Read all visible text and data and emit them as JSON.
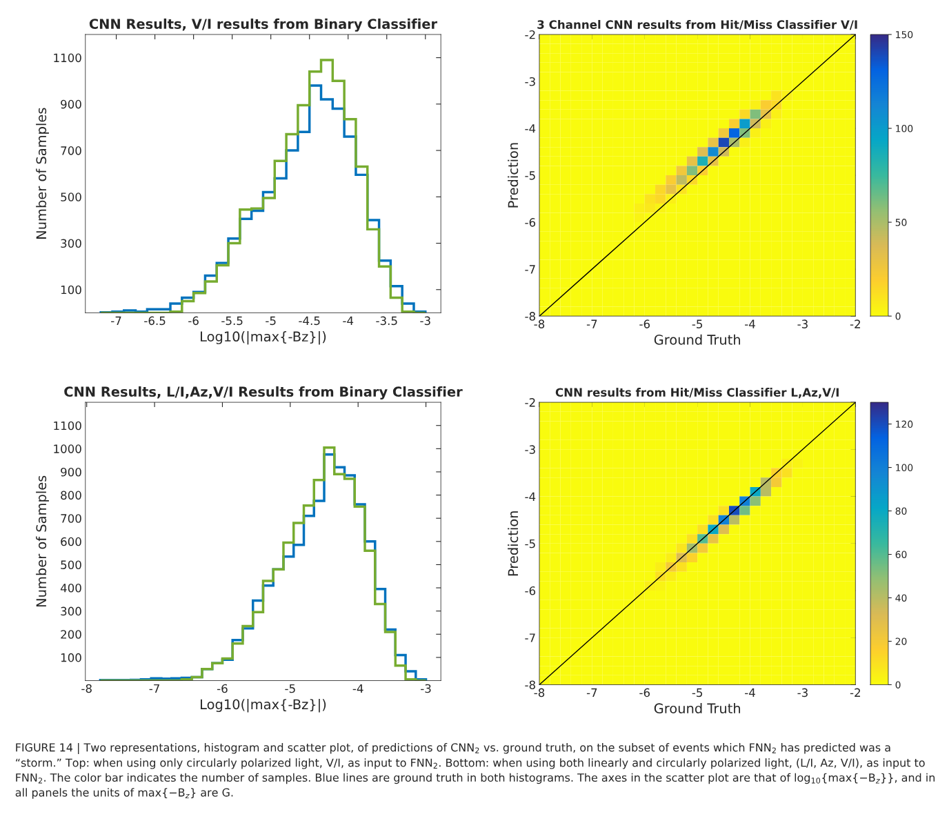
{
  "chart_data": [
    {
      "type": "histogram",
      "title": "CNN Results, V/I results from Binary Classifier",
      "xlabel": "Log10(|max{-Bz}|)",
      "ylabel": "Number of Samples",
      "xlim": [
        -7.4,
        -2.8
      ],
      "ylim": [
        0,
        1200
      ],
      "xticks": [
        -7,
        -6.5,
        -6,
        -5.5,
        -5,
        -4.5,
        -4,
        -3.5,
        -3
      ],
      "yticks": [
        100,
        300,
        500,
        700,
        900,
        1100
      ],
      "bins": [
        -7.2,
        -7.05,
        -6.9,
        -6.75,
        -6.6,
        -6.45,
        -6.3,
        -6.15,
        -6.0,
        -5.85,
        -5.7,
        -5.55,
        -5.4,
        -5.25,
        -5.1,
        -4.95,
        -4.8,
        -4.65,
        -4.5,
        -4.35,
        -4.2,
        -4.05,
        -3.9,
        -3.75,
        -3.6,
        -3.45,
        -3.3,
        -3.15,
        -3.0
      ],
      "series": [
        {
          "color": "#0072bd",
          "values": [
            2,
            5,
            10,
            5,
            15,
            15,
            40,
            65,
            90,
            160,
            215,
            320,
            405,
            440,
            520,
            580,
            700,
            780,
            980,
            920,
            880,
            760,
            595,
            400,
            225,
            115,
            40,
            5
          ]
        },
        {
          "color": "#77ac30",
          "values": [
            0,
            0,
            0,
            0,
            0,
            0,
            5,
            50,
            85,
            135,
            205,
            300,
            445,
            450,
            495,
            655,
            770,
            895,
            1040,
            1090,
            1000,
            835,
            630,
            360,
            200,
            65,
            5,
            0
          ]
        }
      ]
    },
    {
      "type": "heatmap",
      "title": "3 Channel CNN results from Hit/Miss Classifier V/I",
      "xlabel": "Ground Truth",
      "ylabel": "Prediction",
      "xlim": [
        -8,
        -2
      ],
      "ylim": [
        -8,
        -2
      ],
      "xticks": [
        -8,
        -7,
        -6,
        -5,
        -4,
        -3,
        -2
      ],
      "yticks": [
        -8,
        -7,
        -6,
        -5,
        -4,
        -3,
        -2
      ],
      "clim": [
        0,
        150
      ],
      "cticks": [
        0,
        50,
        100,
        150
      ],
      "series": [
        {
          "type": "line",
          "color": "#000000",
          "x": [
            -8,
            -7,
            -6,
            -5,
            -4,
            -3,
            -2
          ],
          "values": [
            -8,
            -7,
            -6,
            -5,
            -4,
            -3,
            -2
          ]
        }
      ],
      "cells": [
        [
          0,
          0,
          0,
          0,
          0,
          0,
          0,
          0,
          0,
          0,
          0,
          0,
          0,
          0,
          0,
          0,
          0,
          0,
          0,
          0,
          0,
          0,
          0,
          0,
          0,
          0,
          0,
          0,
          0,
          0
        ],
        [
          0,
          0,
          0,
          0,
          0,
          0,
          0,
          0,
          0,
          0,
          0,
          0,
          0,
          0,
          0,
          0,
          0,
          0,
          0,
          0,
          0,
          0,
          0,
          0,
          0,
          0,
          0,
          0,
          0,
          0
        ],
        [
          0,
          0,
          0,
          0,
          0,
          0,
          0,
          0,
          0,
          0,
          0,
          0,
          0,
          0,
          0,
          0,
          0,
          0,
          0,
          0,
          0,
          0,
          0,
          0,
          0,
          0,
          0,
          0,
          0,
          0
        ],
        [
          0,
          0,
          0,
          0,
          0,
          0,
          0,
          0,
          0,
          0,
          0,
          0,
          0,
          0,
          0,
          0,
          0,
          0,
          0,
          0,
          0,
          0,
          0,
          0,
          0,
          0,
          0,
          0,
          0,
          0
        ],
        [
          0,
          0,
          0,
          0,
          0,
          0,
          0,
          0,
          0,
          0,
          0,
          0,
          0,
          0,
          0,
          0,
          0,
          0,
          0,
          0,
          0,
          0,
          0,
          0,
          0,
          0,
          0,
          0,
          0,
          0
        ],
        [
          0,
          0,
          0,
          0,
          0,
          0,
          0,
          0,
          0,
          0,
          0,
          0,
          0,
          0,
          0,
          0,
          0,
          0,
          0,
          0,
          0,
          0,
          0,
          0,
          0,
          0,
          0,
          0,
          0,
          0
        ],
        [
          0,
          0,
          0,
          0,
          0,
          0,
          0,
          0,
          0,
          0,
          0,
          0,
          0,
          0,
          0,
          0,
          0,
          0,
          0,
          0,
          0,
          0,
          10,
          5,
          0,
          0,
          0,
          0,
          0,
          0
        ],
        [
          0,
          0,
          0,
          0,
          0,
          0,
          0,
          0,
          0,
          0,
          0,
          0,
          0,
          0,
          0,
          0,
          0,
          0,
          0,
          0,
          5,
          20,
          15,
          0,
          0,
          0,
          0,
          0,
          0,
          0
        ],
        [
          0,
          0,
          0,
          0,
          0,
          0,
          0,
          0,
          0,
          0,
          0,
          0,
          0,
          0,
          0,
          0,
          0,
          0,
          0,
          15,
          60,
          30,
          5,
          0,
          0,
          0,
          0,
          0,
          0,
          0
        ],
        [
          0,
          0,
          0,
          0,
          0,
          0,
          0,
          0,
          0,
          0,
          0,
          0,
          0,
          0,
          0,
          0,
          0,
          0,
          20,
          100,
          40,
          5,
          0,
          0,
          0,
          0,
          0,
          0,
          0,
          0
        ],
        [
          0,
          0,
          0,
          0,
          0,
          0,
          0,
          0,
          0,
          0,
          0,
          0,
          0,
          0,
          0,
          0,
          0,
          25,
          130,
          60,
          5,
          0,
          0,
          0,
          0,
          0,
          0,
          0,
          0,
          0
        ],
        [
          0,
          0,
          0,
          0,
          0,
          0,
          0,
          0,
          0,
          0,
          0,
          0,
          0,
          0,
          0,
          0,
          30,
          140,
          50,
          5,
          0,
          0,
          0,
          0,
          0,
          0,
          0,
          0,
          0,
          0
        ],
        [
          0,
          0,
          0,
          0,
          0,
          0,
          0,
          0,
          0,
          0,
          0,
          0,
          0,
          0,
          0,
          35,
          110,
          40,
          0,
          0,
          0,
          0,
          0,
          0,
          0,
          0,
          0,
          0,
          0,
          0
        ],
        [
          0,
          0,
          0,
          0,
          0,
          0,
          0,
          0,
          0,
          0,
          0,
          0,
          0,
          0,
          30,
          85,
          30,
          0,
          0,
          0,
          0,
          0,
          0,
          0,
          0,
          0,
          0,
          0,
          0,
          0
        ],
        [
          0,
          0,
          0,
          0,
          0,
          0,
          0,
          0,
          0,
          0,
          0,
          0,
          0,
          25,
          60,
          20,
          0,
          0,
          0,
          0,
          0,
          0,
          0,
          0,
          0,
          0,
          0,
          0,
          0,
          0
        ],
        [
          0,
          0,
          0,
          0,
          0,
          0,
          0,
          0,
          0,
          0,
          0,
          0,
          20,
          45,
          15,
          0,
          0,
          0,
          0,
          0,
          0,
          0,
          0,
          0,
          0,
          0,
          0,
          0,
          0,
          0
        ],
        [
          0,
          0,
          0,
          0,
          0,
          0,
          0,
          0,
          0,
          0,
          0,
          15,
          30,
          10,
          0,
          0,
          0,
          0,
          0,
          0,
          0,
          0,
          0,
          0,
          0,
          0,
          0,
          0,
          0,
          0
        ],
        [
          0,
          0,
          0,
          0,
          0,
          0,
          0,
          0,
          0,
          0,
          10,
          15,
          5,
          0,
          0,
          0,
          0,
          0,
          0,
          0,
          0,
          0,
          0,
          0,
          0,
          0,
          0,
          0,
          0,
          0
        ],
        [
          0,
          0,
          0,
          0,
          0,
          0,
          0,
          0,
          0,
          5,
          8,
          3,
          0,
          0,
          0,
          0,
          0,
          0,
          0,
          0,
          0,
          0,
          0,
          0,
          0,
          0,
          0,
          0,
          0,
          0
        ],
        [
          0,
          0,
          0,
          0,
          0,
          0,
          0,
          0,
          0,
          3,
          0,
          0,
          0,
          0,
          0,
          0,
          0,
          0,
          0,
          0,
          0,
          0,
          0,
          0,
          0,
          0,
          0,
          0,
          0,
          0
        ],
        [
          0,
          0,
          0,
          0,
          0,
          0,
          0,
          0,
          0,
          0,
          0,
          0,
          0,
          0,
          0,
          0,
          0,
          0,
          0,
          0,
          0,
          0,
          0,
          0,
          0,
          0,
          0,
          0,
          0,
          0
        ],
        [
          0,
          0,
          0,
          0,
          0,
          0,
          0,
          0,
          0,
          0,
          0,
          0,
          0,
          0,
          0,
          0,
          0,
          0,
          0,
          0,
          0,
          0,
          0,
          0,
          0,
          0,
          0,
          0,
          0,
          0
        ],
        [
          0,
          0,
          0,
          0,
          0,
          0,
          0,
          0,
          0,
          0,
          0,
          0,
          0,
          0,
          0,
          0,
          0,
          0,
          0,
          0,
          0,
          0,
          0,
          0,
          0,
          0,
          0,
          0,
          0,
          0
        ],
        [
          0,
          0,
          0,
          0,
          0,
          0,
          0,
          0,
          0,
          0,
          0,
          0,
          0,
          0,
          0,
          0,
          0,
          0,
          0,
          0,
          0,
          0,
          0,
          0,
          0,
          0,
          0,
          0,
          0,
          0
        ],
        [
          0,
          0,
          0,
          0,
          0,
          0,
          0,
          0,
          0,
          0,
          0,
          0,
          0,
          0,
          0,
          0,
          0,
          0,
          0,
          0,
          0,
          0,
          0,
          0,
          0,
          0,
          0,
          0,
          0,
          0
        ],
        [
          0,
          0,
          0,
          0,
          0,
          0,
          0,
          0,
          0,
          0,
          0,
          0,
          0,
          0,
          0,
          0,
          0,
          0,
          0,
          0,
          0,
          0,
          0,
          0,
          0,
          0,
          0,
          0,
          0,
          0
        ],
        [
          0,
          0,
          0,
          0,
          0,
          0,
          0,
          0,
          0,
          0,
          0,
          0,
          0,
          0,
          0,
          0,
          0,
          0,
          0,
          0,
          0,
          0,
          0,
          0,
          0,
          0,
          0,
          0,
          0,
          0
        ],
        [
          0,
          0,
          0,
          0,
          0,
          0,
          0,
          0,
          0,
          0,
          0,
          0,
          0,
          0,
          0,
          0,
          0,
          0,
          0,
          0,
          0,
          0,
          0,
          0,
          0,
          0,
          0,
          0,
          0,
          0
        ],
        [
          0,
          0,
          0,
          0,
          0,
          0,
          0,
          0,
          0,
          0,
          0,
          0,
          0,
          0,
          0,
          0,
          0,
          0,
          0,
          0,
          0,
          0,
          0,
          0,
          0,
          0,
          0,
          0,
          0,
          0
        ],
        [
          0,
          0,
          0,
          0,
          0,
          0,
          0,
          0,
          0,
          0,
          0,
          0,
          0,
          0,
          0,
          0,
          0,
          0,
          0,
          0,
          0,
          0,
          0,
          0,
          0,
          0,
          0,
          0,
          0,
          0
        ]
      ]
    },
    {
      "type": "histogram",
      "title": "CNN Results, L/I,Az,V/I Results from Binary Classifier",
      "xlabel": "Log10(|max{-Bz}|)",
      "ylabel": "Number of Samples",
      "xlim": [
        -8.02,
        -2.78
      ],
      "ylim": [
        0,
        1200
      ],
      "xticks": [
        -8,
        -7,
        -6,
        -5,
        -4,
        -3
      ],
      "yticks": [
        100,
        200,
        300,
        400,
        500,
        600,
        700,
        800,
        900,
        1000,
        1100
      ],
      "bins": [
        -7.8,
        -7.65,
        -7.5,
        -7.35,
        -7.2,
        -7.05,
        -6.9,
        -6.75,
        -6.6,
        -6.45,
        -6.3,
        -6.15,
        -6.0,
        -5.85,
        -5.7,
        -5.55,
        -5.4,
        -5.25,
        -5.1,
        -4.95,
        -4.8,
        -4.65,
        -4.5,
        -4.35,
        -4.2,
        -4.05,
        -3.9,
        -3.75,
        -3.6,
        -3.45,
        -3.3,
        -3.15,
        -3.0
      ],
      "series": [
        {
          "color": "#0072bd",
          "values": [
            2,
            2,
            2,
            3,
            5,
            10,
            8,
            10,
            12,
            15,
            50,
            75,
            90,
            175,
            225,
            345,
            410,
            480,
            535,
            585,
            710,
            775,
            975,
            920,
            885,
            760,
            600,
            395,
            220,
            110,
            40,
            5
          ]
        },
        {
          "color": "#77ac30",
          "values": [
            0,
            0,
            0,
            0,
            0,
            0,
            0,
            0,
            5,
            15,
            50,
            75,
            95,
            160,
            235,
            295,
            430,
            480,
            595,
            680,
            755,
            865,
            1005,
            890,
            870,
            750,
            560,
            330,
            210,
            65,
            5,
            0
          ]
        }
      ]
    },
    {
      "type": "heatmap",
      "title": "CNN results from Hit/Miss Classifier L,Az,V/I",
      "xlabel": "Ground Truth",
      "ylabel": "Prediction",
      "xlim": [
        -8,
        -2
      ],
      "ylim": [
        -8,
        -2
      ],
      "xticks": [
        -8,
        -7,
        -6,
        -5,
        -4,
        -3,
        -2
      ],
      "yticks": [
        -8,
        -7,
        -6,
        -5,
        -4,
        -3,
        -2
      ],
      "clim": [
        0,
        130
      ],
      "cticks": [
        0,
        20,
        40,
        60,
        80,
        100,
        120
      ],
      "series": [
        {
          "type": "line",
          "color": "#000000",
          "x": [
            -8,
            -7,
            -6,
            -5,
            -4,
            -3,
            -2
          ],
          "values": [
            -8,
            -7,
            -6,
            -5,
            -4,
            -3,
            -2
          ]
        }
      ],
      "annotations": [
        "FIGURE 14 | Two representations, histogram and scatter plot, of predictions of CNN$_{2}$ vs. ground truth, on the subset of events which FNN$_{2}$ has predicted was a “storm.” Top: when using only circularly polarized light, V/I, as input to FNN$_{2}$. Bottom: when using both linearly and circularly polarized light, (L/I, Az, V/I), as input to FNN$_{2}$. The color bar indicates the number of samples. Blue lines are ground truth in both histograms. The axes in the scatter plot are that of log$_{10}${max{−B$_{z}$}}, and in all panels the units of max{−B$_{z}$} are G."
      ],
      "cells": [
        [
          0,
          0,
          0,
          0,
          0,
          0,
          0,
          0,
          0,
          0,
          0,
          0,
          0,
          0,
          0,
          0,
          0,
          0,
          0,
          0,
          0,
          0,
          0,
          0,
          0,
          0,
          0,
          0,
          0,
          0
        ],
        [
          0,
          0,
          0,
          0,
          0,
          0,
          0,
          0,
          0,
          0,
          0,
          0,
          0,
          0,
          0,
          0,
          0,
          0,
          0,
          0,
          0,
          0,
          0,
          0,
          0,
          0,
          0,
          0,
          0,
          0
        ],
        [
          0,
          0,
          0,
          0,
          0,
          0,
          0,
          0,
          0,
          0,
          0,
          0,
          0,
          0,
          0,
          0,
          0,
          0,
          0,
          0,
          0,
          0,
          0,
          0,
          0,
          0,
          0,
          0,
          0,
          0
        ],
        [
          0,
          0,
          0,
          0,
          0,
          0,
          0,
          0,
          0,
          0,
          0,
          0,
          0,
          0,
          0,
          0,
          0,
          0,
          0,
          0,
          0,
          0,
          0,
          0,
          0,
          0,
          0,
          0,
          0,
          0
        ],
        [
          0,
          0,
          0,
          0,
          0,
          0,
          0,
          0,
          0,
          0,
          0,
          0,
          0,
          0,
          0,
          0,
          0,
          0,
          0,
          0,
          0,
          0,
          0,
          0,
          0,
          0,
          0,
          0,
          0,
          0
        ],
        [
          0,
          0,
          0,
          0,
          0,
          0,
          0,
          0,
          0,
          0,
          0,
          0,
          0,
          0,
          0,
          0,
          0,
          0,
          0,
          0,
          0,
          0,
          0,
          0,
          0,
          0,
          0,
          0,
          0,
          0
        ],
        [
          0,
          0,
          0,
          0,
          0,
          0,
          0,
          0,
          0,
          0,
          0,
          0,
          0,
          0,
          0,
          0,
          0,
          0,
          0,
          0,
          0,
          0,
          0,
          5,
          3,
          0,
          0,
          0,
          0,
          0
        ],
        [
          0,
          0,
          0,
          0,
          0,
          0,
          0,
          0,
          0,
          0,
          0,
          0,
          0,
          0,
          0,
          0,
          0,
          0,
          0,
          0,
          0,
          0,
          15,
          10,
          0,
          0,
          0,
          0,
          0,
          0
        ],
        [
          0,
          0,
          0,
          0,
          0,
          0,
          0,
          0,
          0,
          0,
          0,
          0,
          0,
          0,
          0,
          0,
          0,
          0,
          0,
          0,
          0,
          40,
          20,
          0,
          0,
          0,
          0,
          0,
          0,
          0
        ],
        [
          0,
          0,
          0,
          0,
          0,
          0,
          0,
          0,
          0,
          0,
          0,
          0,
          0,
          0,
          0,
          0,
          0,
          0,
          0,
          0,
          80,
          40,
          0,
          0,
          0,
          0,
          0,
          0,
          0,
          0
        ],
        [
          0,
          0,
          0,
          0,
          0,
          0,
          0,
          0,
          0,
          0,
          0,
          0,
          0,
          0,
          0,
          0,
          0,
          0,
          0,
          100,
          50,
          0,
          0,
          0,
          0,
          0,
          0,
          0,
          0,
          0
        ],
        [
          0,
          0,
          0,
          0,
          0,
          0,
          0,
          0,
          0,
          0,
          0,
          0,
          0,
          0,
          0,
          0,
          0,
          10,
          120,
          55,
          0,
          0,
          0,
          0,
          0,
          0,
          0,
          0,
          0,
          0
        ],
        [
          0,
          0,
          0,
          0,
          0,
          0,
          0,
          0,
          0,
          0,
          0,
          0,
          0,
          0,
          0,
          0,
          10,
          100,
          40,
          0,
          0,
          0,
          0,
          0,
          0,
          0,
          0,
          0,
          0,
          0
        ],
        [
          0,
          0,
          0,
          0,
          0,
          0,
          0,
          0,
          0,
          0,
          0,
          0,
          0,
          0,
          0,
          10,
          80,
          30,
          0,
          0,
          0,
          0,
          0,
          0,
          0,
          0,
          0,
          0,
          0,
          0
        ],
        [
          0,
          0,
          0,
          0,
          0,
          0,
          0,
          0,
          0,
          0,
          0,
          0,
          0,
          0,
          10,
          60,
          25,
          0,
          0,
          0,
          0,
          0,
          0,
          0,
          0,
          0,
          0,
          0,
          0,
          0
        ],
        [
          0,
          0,
          0,
          0,
          0,
          0,
          0,
          0,
          0,
          0,
          0,
          0,
          0,
          8,
          45,
          20,
          0,
          0,
          0,
          0,
          0,
          0,
          0,
          0,
          0,
          0,
          0,
          0,
          0,
          0
        ],
        [
          0,
          0,
          0,
          0,
          0,
          0,
          0,
          0,
          0,
          0,
          0,
          0,
          5,
          30,
          15,
          0,
          0,
          0,
          0,
          0,
          0,
          0,
          0,
          0,
          0,
          0,
          0,
          0,
          0,
          0
        ],
        [
          0,
          0,
          0,
          0,
          0,
          0,
          0,
          0,
          0,
          0,
          0,
          5,
          20,
          10,
          0,
          0,
          0,
          0,
          0,
          0,
          0,
          0,
          0,
          0,
          0,
          0,
          0,
          0,
          0,
          0
        ],
        [
          0,
          0,
          0,
          0,
          0,
          0,
          0,
          0,
          0,
          0,
          0,
          10,
          5,
          0,
          0,
          0,
          0,
          0,
          0,
          0,
          0,
          0,
          0,
          0,
          0,
          0,
          0,
          0,
          0,
          0
        ],
        [
          0,
          0,
          0,
          0,
          0,
          0,
          0,
          0,
          0,
          0,
          5,
          3,
          0,
          0,
          0,
          0,
          0,
          0,
          0,
          0,
          0,
          0,
          0,
          0,
          0,
          0,
          0,
          0,
          0,
          0
        ],
        [
          0,
          0,
          0,
          0,
          0,
          0,
          0,
          0,
          0,
          3,
          0,
          0,
          0,
          0,
          0,
          0,
          0,
          0,
          0,
          0,
          0,
          0,
          0,
          0,
          0,
          0,
          0,
          0,
          0,
          0
        ],
        [
          0,
          0,
          0,
          0,
          0,
          0,
          0,
          0,
          0,
          0,
          0,
          0,
          0,
          0,
          0,
          0,
          0,
          0,
          0,
          0,
          0,
          0,
          0,
          0,
          0,
          0,
          0,
          0,
          0,
          0
        ],
        [
          0,
          0,
          0,
          0,
          0,
          0,
          0,
          0,
          0,
          0,
          0,
          0,
          0,
          0,
          0,
          0,
          0,
          0,
          0,
          0,
          0,
          0,
          0,
          0,
          0,
          0,
          0,
          0,
          0,
          0
        ],
        [
          0,
          0,
          0,
          0,
          0,
          0,
          0,
          0,
          0,
          0,
          0,
          0,
          0,
          0,
          0,
          0,
          0,
          0,
          0,
          0,
          0,
          0,
          0,
          0,
          0,
          0,
          0,
          0,
          0,
          0
        ],
        [
          0,
          0,
          0,
          0,
          0,
          0,
          0,
          0,
          0,
          0,
          0,
          0,
          0,
          0,
          0,
          0,
          0,
          0,
          0,
          0,
          0,
          0,
          0,
          0,
          0,
          0,
          0,
          0,
          0,
          0
        ],
        [
          0,
          0,
          0,
          0,
          0,
          0,
          0,
          0,
          0,
          0,
          0,
          0,
          0,
          0,
          0,
          0,
          0,
          0,
          0,
          0,
          0,
          0,
          0,
          0,
          0,
          0,
          0,
          0,
          0,
          0
        ],
        [
          0,
          0,
          0,
          0,
          0,
          0,
          0,
          0,
          0,
          0,
          0,
          0,
          0,
          0,
          0,
          0,
          0,
          0,
          0,
          0,
          0,
          0,
          0,
          0,
          0,
          0,
          0,
          0,
          0,
          0
        ],
        [
          0,
          0,
          0,
          0,
          0,
          0,
          0,
          0,
          0,
          0,
          0,
          0,
          0,
          0,
          0,
          0,
          0,
          0,
          0,
          0,
          0,
          0,
          0,
          0,
          0,
          0,
          0,
          0,
          0,
          0
        ],
        [
          0,
          0,
          0,
          0,
          0,
          0,
          0,
          0,
          0,
          0,
          0,
          0,
          0,
          0,
          0,
          0,
          0,
          0,
          0,
          0,
          0,
          0,
          0,
          0,
          0,
          0,
          0,
          0,
          0,
          0
        ],
        [
          0,
          0,
          0,
          0,
          0,
          0,
          0,
          0,
          0,
          0,
          0,
          0,
          0,
          0,
          0,
          0,
          0,
          0,
          0,
          0,
          0,
          0,
          0,
          0,
          0,
          0,
          0,
          0,
          0,
          0
        ]
      ]
    }
  ]
}
